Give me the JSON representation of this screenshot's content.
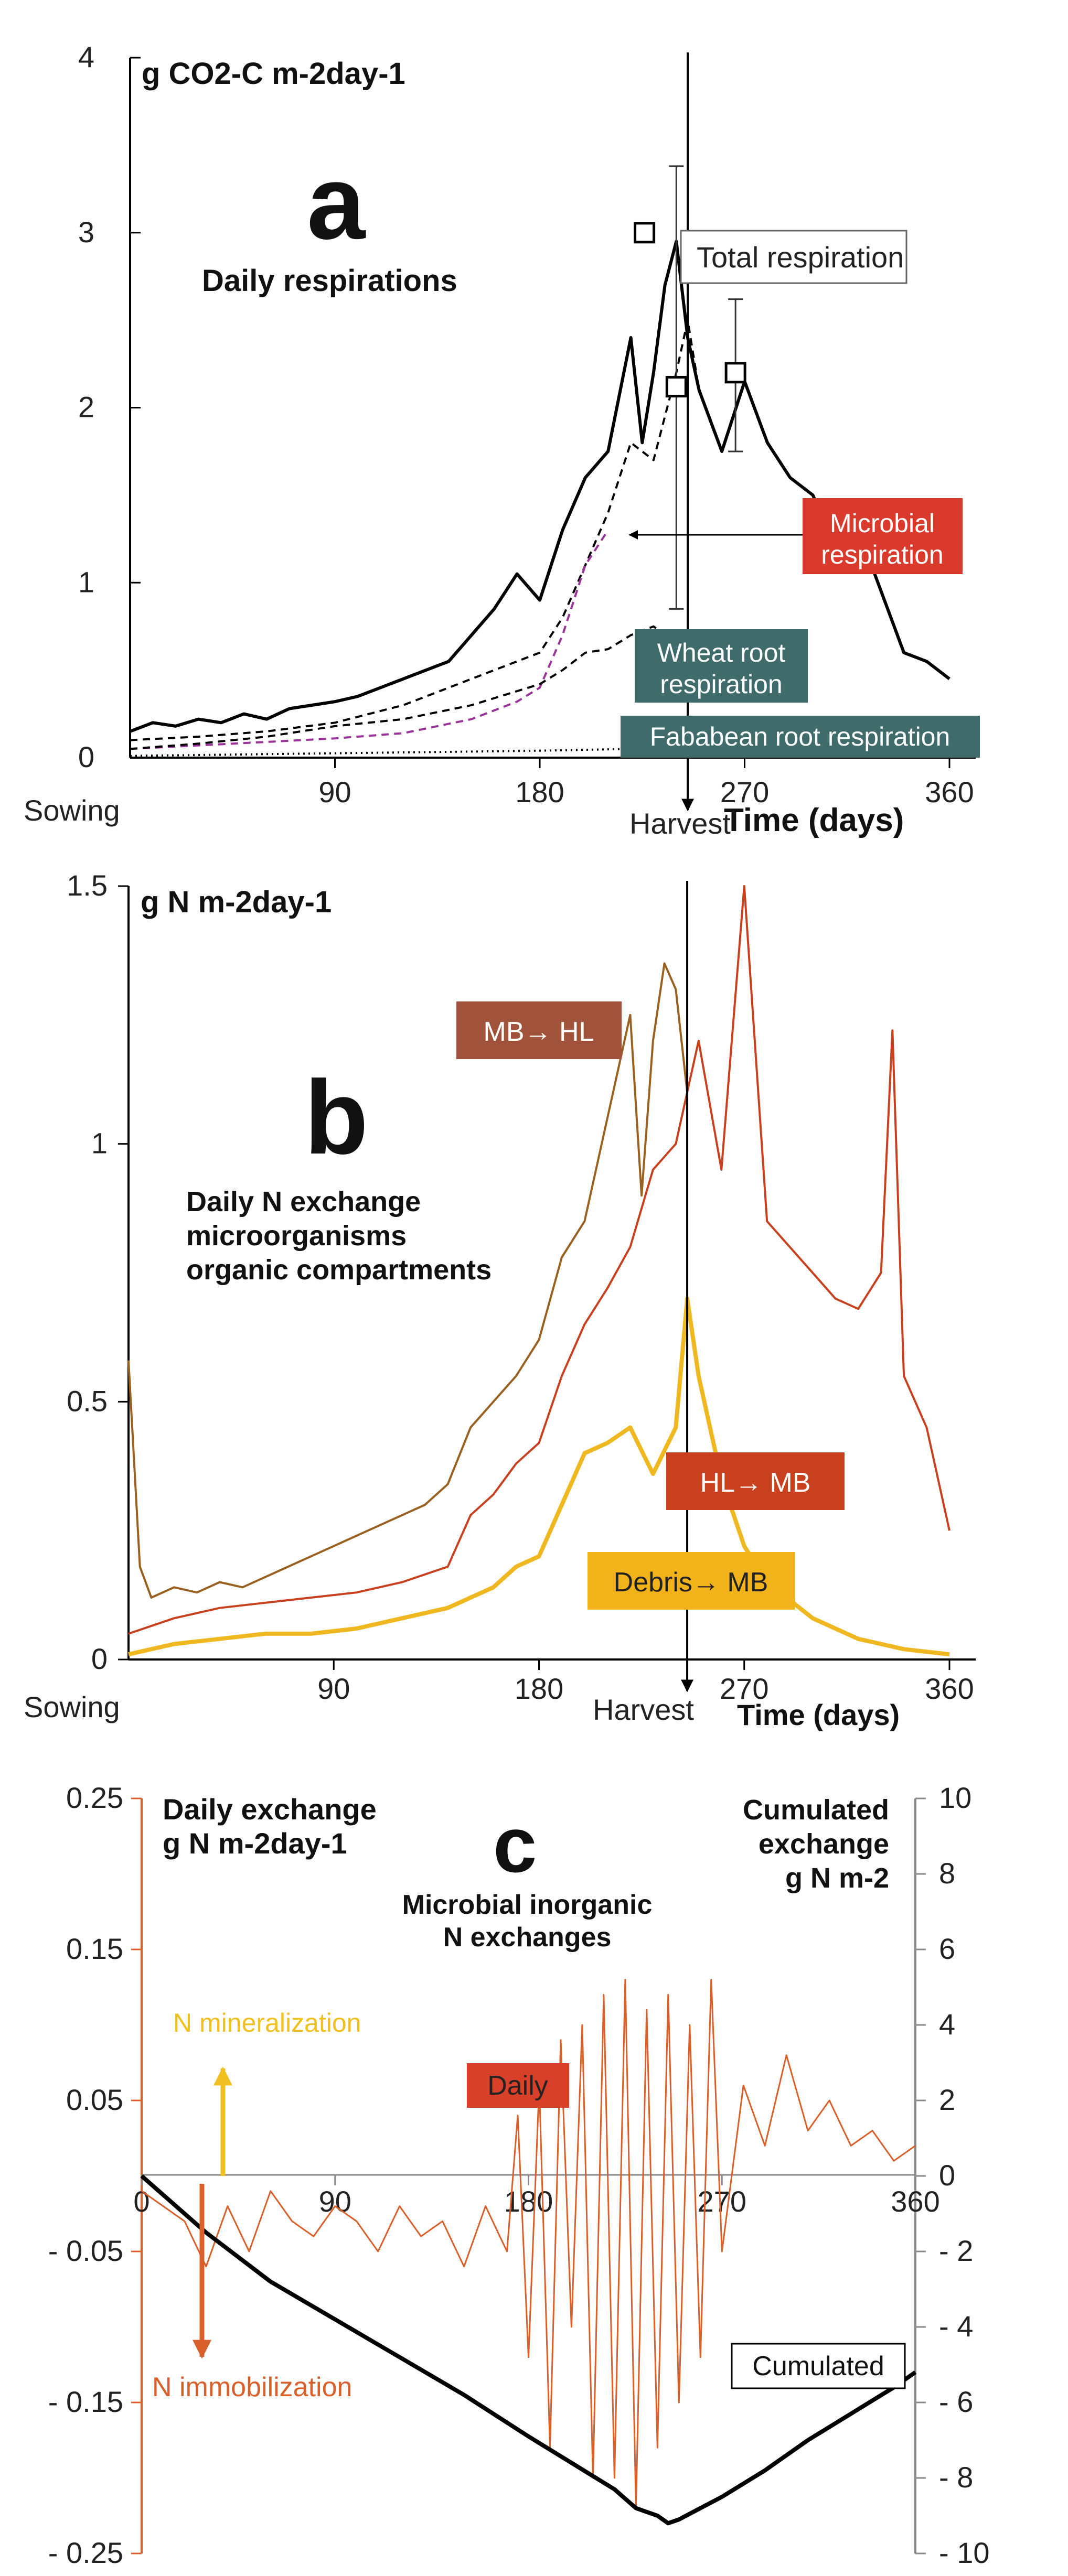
{
  "chart_data": [
    {
      "id": "a",
      "type": "line",
      "panel_letter": "a",
      "title": "Daily respirations",
      "ylabel": "g CO2-C m-2day-1",
      "xlabel": "Time (days)",
      "xlim": [
        0,
        360
      ],
      "ylim": [
        0,
        4
      ],
      "x_ticks": [
        90,
        180,
        270,
        360
      ],
      "y_ticks": [
        0,
        1,
        2,
        3,
        4
      ],
      "annotations": {
        "sowing": "Sowing",
        "harvest": "Harvest",
        "harvest_day": 245
      },
      "series": [
        {
          "name": "Total respiration",
          "color": "#000000",
          "style": "solid",
          "x": [
            0,
            10,
            20,
            30,
            40,
            50,
            60,
            70,
            80,
            90,
            100,
            110,
            120,
            130,
            140,
            150,
            160,
            170,
            180,
            190,
            200,
            210,
            220,
            225,
            230,
            235,
            240,
            245,
            250,
            260,
            270,
            280,
            290,
            300,
            310,
            320,
            330,
            340,
            350,
            360
          ],
          "y": [
            0.15,
            0.2,
            0.18,
            0.22,
            0.2,
            0.25,
            0.22,
            0.28,
            0.3,
            0.32,
            0.35,
            0.4,
            0.45,
            0.5,
            0.55,
            0.7,
            0.85,
            1.05,
            0.9,
            1.3,
            1.6,
            1.75,
            2.4,
            1.8,
            2.2,
            2.7,
            2.95,
            2.4,
            2.1,
            1.75,
            2.15,
            1.8,
            1.6,
            1.5,
            1.2,
            1.3,
            0.95,
            0.6,
            0.55,
            0.45
          ]
        },
        {
          "name": "Microbial respiration",
          "color": "#000000",
          "style": "dashed",
          "x": [
            0,
            30,
            60,
            90,
            120,
            150,
            170,
            180,
            190,
            200,
            210,
            220,
            230,
            240,
            245,
            250
          ],
          "y": [
            0.1,
            0.12,
            0.15,
            0.2,
            0.3,
            0.45,
            0.55,
            0.6,
            0.8,
            1.1,
            1.4,
            1.8,
            1.7,
            2.2,
            2.5,
            2.1
          ]
        },
        {
          "name": "Microbial respiration (tail)",
          "color": "#993399",
          "style": "dashed",
          "x": [
            0,
            30,
            60,
            90,
            120,
            150,
            170,
            180,
            190,
            200,
            210
          ],
          "y": [
            0.05,
            0.07,
            0.09,
            0.11,
            0.14,
            0.22,
            0.32,
            0.4,
            0.7,
            1.1,
            1.3
          ]
        },
        {
          "name": "Wheat root respiration",
          "color": "#000000",
          "style": "dashed",
          "x": [
            0,
            30,
            60,
            90,
            120,
            150,
            170,
            180,
            190,
            200,
            210,
            220,
            230,
            240,
            250
          ],
          "y": [
            0.05,
            0.08,
            0.12,
            0.18,
            0.22,
            0.3,
            0.38,
            0.42,
            0.5,
            0.6,
            0.62,
            0.7,
            0.75,
            0.65,
            0.4
          ]
        },
        {
          "name": "Fababean root respiration",
          "color": "#000000",
          "style": "dotted",
          "x": [
            0,
            60,
            120,
            180,
            220,
            240,
            250
          ],
          "y": [
            0.01,
            0.02,
            0.03,
            0.04,
            0.05,
            0.06,
            0.02
          ]
        }
      ],
      "error_bars": [
        {
          "x": 226,
          "y": 3.0,
          "low": 3.0,
          "high": 3.0
        },
        {
          "x": 240,
          "y": 2.12,
          "low": 0.85,
          "high": 3.38
        },
        {
          "x": 266,
          "y": 2.2,
          "low": 1.75,
          "high": 2.62
        }
      ],
      "labels": {
        "total": "Total respiration",
        "microbial_1": "Microbial",
        "microbial_2": "respiration",
        "wheat_1": "Wheat root",
        "wheat_2": "respiration",
        "faba": "Fababean root respiration"
      },
      "colors": {
        "microbial_box": "#d93a2b",
        "root_box": "#3f6b6b"
      }
    },
    {
      "id": "b",
      "type": "line",
      "panel_letter": "b",
      "title_lines": [
        "Daily N exchange",
        "microorganisms",
        "organic compartments"
      ],
      "ylabel": "g N m-2day-1",
      "xlabel": "Time (days)",
      "xlim": [
        0,
        360
      ],
      "ylim": [
        0,
        1.5
      ],
      "x_ticks": [
        90,
        180,
        270,
        360
      ],
      "y_ticks": [
        0,
        0.5,
        1,
        1.5
      ],
      "annotations": {
        "sowing": "Sowing",
        "harvest": "Harvest",
        "harvest_day": 245
      },
      "series": [
        {
          "name": "MB→ HL",
          "color": "#9a6020",
          "x": [
            0,
            5,
            10,
            20,
            30,
            40,
            50,
            60,
            70,
            80,
            90,
            100,
            110,
            120,
            130,
            140,
            150,
            160,
            170,
            180,
            190,
            200,
            210,
            220,
            225,
            230,
            235,
            240,
            245
          ],
          "y": [
            0.58,
            0.18,
            0.12,
            0.14,
            0.13,
            0.15,
            0.14,
            0.16,
            0.18,
            0.2,
            0.22,
            0.24,
            0.26,
            0.28,
            0.3,
            0.34,
            0.45,
            0.5,
            0.55,
            0.62,
            0.78,
            0.85,
            1.05,
            1.25,
            0.9,
            1.2,
            1.35,
            1.3,
            1.1
          ]
        },
        {
          "name": "HL→ MB",
          "color": "#c8401e",
          "x": [
            0,
            20,
            40,
            60,
            80,
            100,
            120,
            140,
            150,
            160,
            170,
            180,
            190,
            200,
            210,
            220,
            230,
            240,
            250,
            260,
            270,
            280,
            290,
            300,
            310,
            320,
            330,
            335,
            340,
            350,
            360
          ],
          "y": [
            0.05,
            0.08,
            0.1,
            0.11,
            0.12,
            0.13,
            0.15,
            0.18,
            0.28,
            0.32,
            0.38,
            0.42,
            0.55,
            0.65,
            0.72,
            0.8,
            0.95,
            1.0,
            1.2,
            0.95,
            1.5,
            0.85,
            0.8,
            0.75,
            0.7,
            0.68,
            0.75,
            1.22,
            0.55,
            0.45,
            0.25
          ]
        },
        {
          "name": "Debris→ MB",
          "color": "#f0b820",
          "x": [
            0,
            20,
            40,
            60,
            80,
            100,
            120,
            140,
            160,
            170,
            180,
            190,
            200,
            210,
            220,
            230,
            240,
            245,
            250,
            260,
            270,
            280,
            300,
            320,
            340,
            360
          ],
          "y": [
            0.01,
            0.03,
            0.04,
            0.05,
            0.05,
            0.06,
            0.08,
            0.1,
            0.14,
            0.18,
            0.2,
            0.3,
            0.4,
            0.42,
            0.45,
            0.36,
            0.45,
            0.7,
            0.55,
            0.35,
            0.22,
            0.15,
            0.08,
            0.04,
            0.02,
            0.01
          ]
        }
      ],
      "labels": {
        "mb_hl": "MB→ HL",
        "hl_mb": "HL→ MB",
        "debris_mb": "Debris→ MB"
      },
      "colors": {
        "mb_hl_box": "#a0523a",
        "hl_mb_box": "#c8401e",
        "debris_box": "#f2b21a"
      }
    },
    {
      "id": "c",
      "type": "line",
      "panel_letter": "c",
      "title_lines": [
        "Microbial inorganic",
        "N exchanges"
      ],
      "left_axis_title": [
        "Daily exchange",
        "g N m-2day-1"
      ],
      "right_axis_title": [
        "Cumulated",
        "exchange",
        "g N m-2"
      ],
      "xlim": [
        0,
        360
      ],
      "ylim_left": [
        -0.25,
        0.25
      ],
      "ylim_right": [
        -10,
        10
      ],
      "x_ticks": [
        0,
        90,
        180,
        270,
        360
      ],
      "y_ticks_left": [
        "0.25",
        "0.15",
        "0.05",
        "- 0.05",
        "- 0.15",
        "- 0.25"
      ],
      "y_ticks_left_values": [
        0.25,
        0.15,
        0.05,
        -0.05,
        -0.15,
        -0.25
      ],
      "y_ticks_right": [
        "10",
        "8",
        "6",
        "4",
        "2",
        "0",
        "- 2",
        "- 4",
        "- 6",
        "- 8",
        "- 10"
      ],
      "y_ticks_right_values": [
        10,
        8,
        6,
        4,
        2,
        0,
        -2,
        -4,
        -6,
        -8,
        -10
      ],
      "series": [
        {
          "name": "Daily",
          "axis": "left",
          "color": "#d9602a",
          "x": [
            0,
            10,
            20,
            30,
            40,
            50,
            60,
            70,
            80,
            90,
            100,
            110,
            120,
            130,
            140,
            150,
            160,
            170,
            175,
            180,
            185,
            190,
            195,
            200,
            205,
            210,
            215,
            220,
            225,
            230,
            235,
            240,
            245,
            250,
            255,
            260,
            265,
            270,
            280,
            290,
            300,
            310,
            320,
            330,
            340,
            350,
            360
          ],
          "y": [
            -0.01,
            -0.02,
            -0.03,
            -0.06,
            -0.02,
            -0.05,
            -0.01,
            -0.03,
            -0.04,
            -0.02,
            -0.03,
            -0.05,
            -0.02,
            -0.04,
            -0.03,
            -0.06,
            -0.02,
            -0.05,
            0.04,
            -0.12,
            0.06,
            -0.18,
            0.09,
            -0.1,
            0.1,
            -0.2,
            0.12,
            -0.2,
            0.13,
            -0.22,
            0.11,
            -0.18,
            0.12,
            -0.15,
            0.1,
            -0.12,
            0.13,
            -0.05,
            0.06,
            0.02,
            0.08,
            0.03,
            0.05,
            0.02,
            0.03,
            0.01,
            0.02
          ]
        },
        {
          "name": "Cumulated",
          "axis": "right",
          "color": "#000000",
          "x": [
            0,
            30,
            60,
            90,
            120,
            150,
            180,
            200,
            220,
            230,
            240,
            245,
            250,
            260,
            270,
            290,
            310,
            330,
            350,
            360
          ],
          "y": [
            0,
            -1.5,
            -2.8,
            -3.8,
            -4.8,
            -5.8,
            -6.9,
            -7.6,
            -8.3,
            -8.8,
            -9.0,
            -9.2,
            -9.1,
            -8.8,
            -8.5,
            -7.8,
            -7.0,
            -6.3,
            -5.6,
            -5.2
          ]
        }
      ],
      "labels": {
        "mineralization": "N mineralization",
        "immobilization": "N immobilization",
        "daily": "Daily",
        "cumulated": "Cumulated"
      },
      "colors": {
        "mineral": "#f0c020",
        "immob": "#d9602a",
        "daily_box": "#d9402a"
      }
    }
  ]
}
